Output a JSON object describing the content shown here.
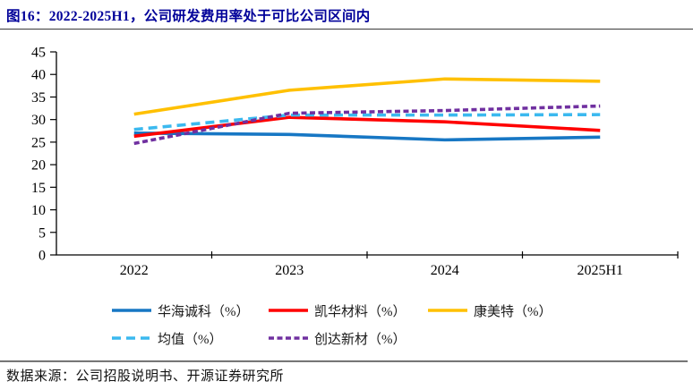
{
  "title": "图16：2022-2025H1，公司研发费用率处于可比公司区间内",
  "footer": {
    "source_text": "数据来源：公司招股说明书、开源证券研究所"
  },
  "chart_data": {
    "type": "line",
    "categories": [
      "2022",
      "2023",
      "2024",
      "2025H1"
    ],
    "series": [
      {
        "name": "华海诚科（%）",
        "color": "#1777C4",
        "dash": "solid",
        "values": [
          27.0,
          26.7,
          25.5,
          26.1
        ]
      },
      {
        "name": "凯华材料（%）",
        "color": "#FF0000",
        "dash": "solid",
        "values": [
          26.3,
          30.5,
          29.5,
          27.6
        ]
      },
      {
        "name": "康美特（%）",
        "color": "#FFC000",
        "dash": "solid",
        "values": [
          31.2,
          36.5,
          39.0,
          38.5
        ]
      },
      {
        "name": "均值（%）",
        "color": "#3BB9EF",
        "dash": "long-dash",
        "values": [
          27.8,
          31.0,
          31.0,
          31.1
        ]
      },
      {
        "name": "创达新材（%）",
        "color": "#7030A0",
        "dash": "short-dash",
        "values": [
          24.7,
          31.4,
          32.0,
          33.0
        ]
      }
    ],
    "title": "",
    "xlabel": "",
    "ylabel": "",
    "ylim": [
      0,
      45
    ],
    "ytick_step": 5,
    "grid": false,
    "legend_position": "bottom",
    "axis_color": "#000000"
  }
}
